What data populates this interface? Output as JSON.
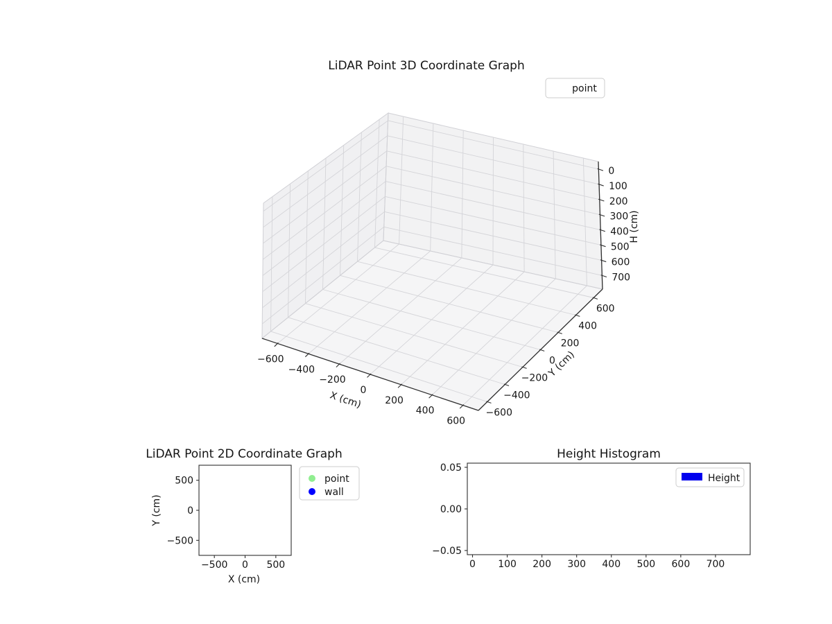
{
  "figure": {
    "background": "#ffffff"
  },
  "plot3d": {
    "title": "LiDAR Point 3D Coordinate Graph",
    "xlabel": "X (cm)",
    "ylabel": "Y (cm)",
    "zlabel": "H (cm)",
    "x_tick_labels": [
      "−600",
      "−400",
      "−200",
      "0",
      "200",
      "400",
      "600"
    ],
    "y_tick_labels": [
      "−600",
      "−400",
      "−200",
      "0",
      "200",
      "400",
      "600"
    ],
    "z_tick_labels": [
      "0",
      "100",
      "200",
      "300",
      "400",
      "500",
      "600",
      "700"
    ],
    "legend": {
      "label": "point"
    }
  },
  "plot2d": {
    "title": "LiDAR Point 2D Coordinate Graph",
    "xlabel": "X (cm)",
    "ylabel": "Y (cm)",
    "x_tick_labels": [
      "−500",
      "0",
      "500"
    ],
    "y_tick_labels": [
      "500",
      "0",
      "−500"
    ],
    "legend": [
      {
        "label": "point",
        "color": "#90ee90"
      },
      {
        "label": "wall",
        "color": "#0000ff"
      }
    ]
  },
  "hist": {
    "title": "Height Histogram",
    "x_tick_labels": [
      "0",
      "100",
      "200",
      "300",
      "400",
      "500",
      "600",
      "700"
    ],
    "y_tick_labels": [
      "0.05",
      "0.00",
      "−0.05"
    ],
    "legend": [
      {
        "label": "Height",
        "color": "#0000ee"
      }
    ]
  },
  "chart_data": [
    {
      "id": "lidar-3d",
      "type": "scatter",
      "projection": "3d",
      "title": "LiDAR Point 3D Coordinate Graph",
      "xlabel": "X (cm)",
      "ylabel": "Y (cm)",
      "zlabel": "H (cm)",
      "xlim": [
        -700,
        700
      ],
      "ylim": [
        -700,
        700
      ],
      "zlim": [
        -50,
        790
      ],
      "zaxis_inverted": true,
      "x_ticks": [
        -600,
        -400,
        -200,
        0,
        200,
        400,
        600
      ],
      "y_ticks": [
        -600,
        -400,
        -200,
        0,
        200,
        400,
        600
      ],
      "z_ticks": [
        0,
        100,
        200,
        300,
        400,
        500,
        600,
        700
      ],
      "grid": true,
      "legend_position": "upper right",
      "series": [
        {
          "name": "point",
          "points": []
        }
      ]
    },
    {
      "id": "lidar-2d",
      "type": "scatter",
      "title": "LiDAR Point 2D Coordinate Graph",
      "xlabel": "X (cm)",
      "ylabel": "Y (cm)",
      "xlim": [
        -750,
        750
      ],
      "ylim": [
        -750,
        750
      ],
      "x_ticks": [
        -500,
        0,
        500
      ],
      "y_ticks": [
        500,
        0,
        -500
      ],
      "grid": false,
      "legend_position": "outside right",
      "series": [
        {
          "name": "point",
          "color": "#90ee90",
          "points": []
        },
        {
          "name": "wall",
          "color": "#0000ff",
          "points": []
        }
      ]
    },
    {
      "id": "height-histogram",
      "type": "bar",
      "title": "Height Histogram",
      "xlabel": "",
      "ylabel": "",
      "xlim": [
        -15,
        800
      ],
      "ylim": [
        -0.055,
        0.055
      ],
      "x_ticks": [
        0,
        100,
        200,
        300,
        400,
        500,
        600,
        700
      ],
      "y_ticks": [
        0.05,
        0.0,
        -0.05
      ],
      "grid": false,
      "legend_position": "upper right",
      "series": [
        {
          "name": "Height",
          "color": "#0000ee",
          "values": []
        }
      ]
    }
  ]
}
